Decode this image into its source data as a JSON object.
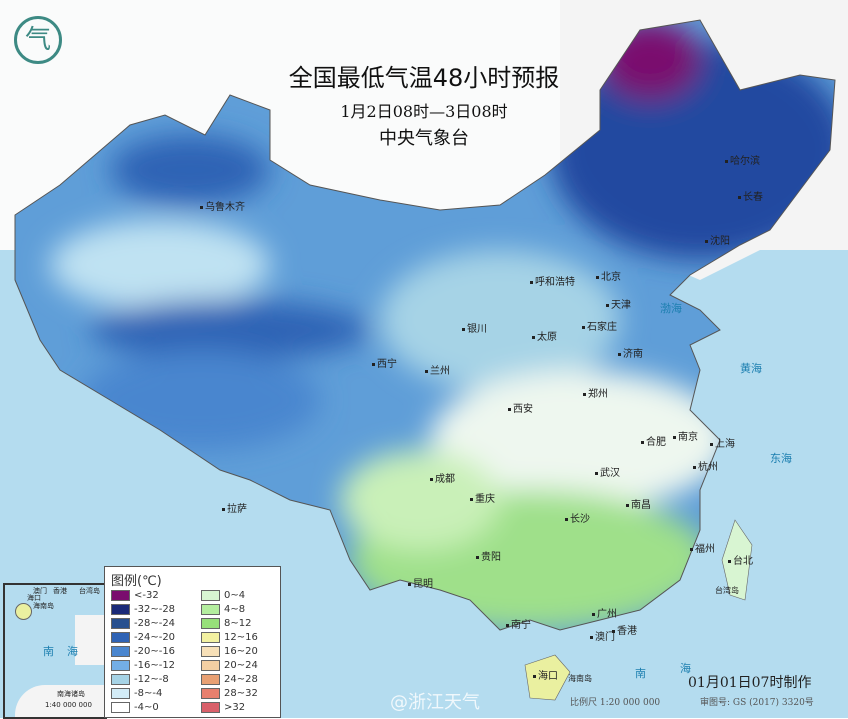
{
  "title": "全国最低气温48小时预报",
  "period": "1月2日08时—3日08时",
  "agency": "中央气象台",
  "logo_glyph": "气",
  "cities": [
    {
      "name": "哈尔滨"
    },
    {
      "name": "长春"
    },
    {
      "name": "沈阳"
    },
    {
      "name": "北京"
    },
    {
      "name": "天津"
    },
    {
      "name": "呼和浩特"
    },
    {
      "name": "石家庄"
    },
    {
      "name": "太原"
    },
    {
      "name": "济南"
    },
    {
      "name": "银川"
    },
    {
      "name": "西宁"
    },
    {
      "name": "兰州"
    },
    {
      "name": "西安"
    },
    {
      "name": "郑州"
    },
    {
      "name": "合肥"
    },
    {
      "name": "南京"
    },
    {
      "name": "上海"
    },
    {
      "name": "杭州"
    },
    {
      "name": "武汉"
    },
    {
      "name": "成都"
    },
    {
      "name": "重庆"
    },
    {
      "name": "长沙"
    },
    {
      "name": "南昌"
    },
    {
      "name": "福州"
    },
    {
      "name": "台北"
    },
    {
      "name": "贵阳"
    },
    {
      "name": "昆明"
    },
    {
      "name": "南宁"
    },
    {
      "name": "广州"
    },
    {
      "name": "香港"
    },
    {
      "name": "澳门"
    },
    {
      "name": "海口"
    },
    {
      "name": "拉萨"
    },
    {
      "name": "乌鲁木齐"
    }
  ],
  "places": {
    "hainan": "海南岛",
    "taiwan": "台湾岛",
    "nanhai1": "南",
    "nanhai2": "海",
    "bohai": "渤海",
    "huanghai": "黄海",
    "donghai": "东海"
  },
  "legend": {
    "title": "图例(℃)",
    "items": [
      {
        "label": "<-32",
        "color": "#7a0d6e"
      },
      {
        "label": "-32~-28",
        "color": "#1a2a78"
      },
      {
        "label": "-28~-24",
        "color": "#27508f"
      },
      {
        "label": "-24~-20",
        "color": "#2f63b5"
      },
      {
        "label": "-20~-16",
        "color": "#4a86cf"
      },
      {
        "label": "-16~-12",
        "color": "#73aee6"
      },
      {
        "label": "-12~-8",
        "color": "#a6d3e6"
      },
      {
        "label": "-8~-4",
        "color": "#d3ecf7"
      },
      {
        "label": "-4~0",
        "color": "#ffffff"
      },
      {
        "label": "0~4",
        "color": "#d8f5d2"
      },
      {
        "label": "4~8",
        "color": "#b4ee9f"
      },
      {
        "label": "8~12",
        "color": "#97e07a"
      },
      {
        "label": "12~16",
        "color": "#f3f1a1"
      },
      {
        "label": "16~20",
        "color": "#f7e0b8"
      },
      {
        "label": "20~24",
        "color": "#f3cfa3"
      },
      {
        "label": "24~28",
        "color": "#e8a073"
      },
      {
        "label": "28~32",
        "color": "#e8806e"
      },
      {
        "label": ">32",
        "color": "#d9606a"
      }
    ]
  },
  "inset": {
    "sea1": "南",
    "sea2": "海",
    "islands": "南海诸岛",
    "scale": "1:40 000 000",
    "macau": "澳门",
    "hk": "香港",
    "taiwan": "台湾岛",
    "haikou": "海口",
    "hainan": "海南岛"
  },
  "footer": {
    "made": "01月01日07时制作",
    "scale": "比例尺 1:20 000 000",
    "review": "审图号: GS (2017) 3320号",
    "watermark": "@浙江天气"
  }
}
